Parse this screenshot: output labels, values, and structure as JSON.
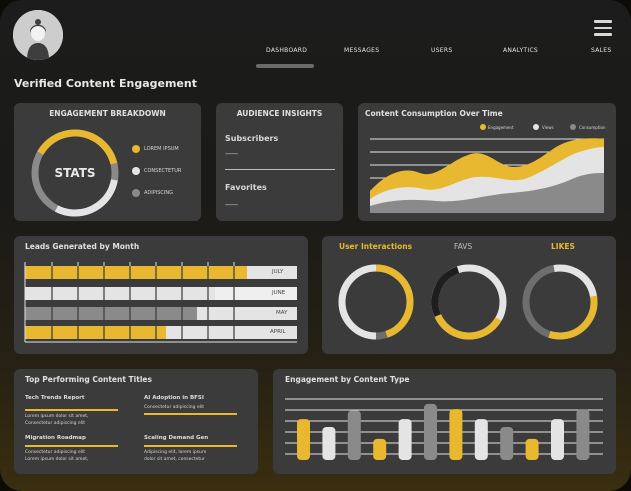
{
  "header": {
    "nav": [
      {
        "label": "DASHBOARD",
        "active": true
      },
      {
        "label": "MESSAGES",
        "active": false
      },
      {
        "label": "USERS",
        "active": false
      },
      {
        "label": "ANALYTICS",
        "active": false
      },
      {
        "label": "SALES",
        "active": false
      }
    ]
  },
  "page_title": "Verified Content Engagement",
  "engagement": {
    "title": "ENGAGEMENT BREAKDOWN",
    "center": "STATS",
    "legend": [
      {
        "label": "LOREM IPSUM",
        "color": "#e8b830"
      },
      {
        "label": "CONSECTETUR",
        "color": "#e4e4e4"
      },
      {
        "label": "ADIPISCING",
        "color": "#8a8a8a"
      }
    ]
  },
  "audience": {
    "title": "AUDIENCE INSIGHTS",
    "subscribers_label": "Subscribers",
    "subscribers_value": "--------",
    "favorites_label": "Favorites",
    "favorites_value": "--------"
  },
  "consumption": {
    "title": "Content Consumption Over Time",
    "legend": [
      {
        "label": "Engagement",
        "color": "#e8b830"
      },
      {
        "label": "Views",
        "color": "#e4e4e4"
      },
      {
        "label": "Consumption",
        "color": "#8a8a8a"
      }
    ]
  },
  "leads": {
    "title": "Leads Generated by Month",
    "bars": [
      {
        "month": "JULY",
        "value": 0.82,
        "color": "#e8b830"
      },
      {
        "month": "JUNE",
        "value": 0.7,
        "color": "#e4e4e4"
      },
      {
        "month": "MAY",
        "value": 0.63,
        "color": "#8a8a8a"
      },
      {
        "month": "APRIL",
        "value": 0.52,
        "color": "#e8b830"
      }
    ]
  },
  "interactions": {
    "labels": [
      "User Interactions",
      "FAVS",
      "LIKES"
    ],
    "donuts": [
      {
        "share": 0.45,
        "color": "#e8b830"
      },
      {
        "share": 0.35,
        "color": "#e8b830"
      },
      {
        "share": 0.3,
        "color": "#e8b830"
      }
    ]
  },
  "top_titles": {
    "title": "Top Performing Content Titles",
    "items": [
      {
        "name": "Tech Trends Report",
        "sub1": "Lorem ipsum dolor sit amet,",
        "sub2": "Consectetur adipiscing elit"
      },
      {
        "name": "AI Adoption in BFSI",
        "sub1": "Consectetur adipiscing elit",
        "sub2": ""
      },
      {
        "name": "Migration Roadmap",
        "sub1": "Consectetur adipiscing elit",
        "sub2": "Lorem ipsum dolor sit amet,"
      },
      {
        "name": "Scaling Demand Gen",
        "sub1": "Adipiscing elit, lorem ipsum",
        "sub2": "dolor sit amet, consectetur"
      }
    ]
  },
  "engagement_type": {
    "title": "Engagement by Content Type",
    "bars": [
      {
        "value": 0.62,
        "color": "#e8b830"
      },
      {
        "value": 0.5,
        "color": "#e4e4e4"
      },
      {
        "value": 0.75,
        "color": "#8a8a8a"
      },
      {
        "value": 0.32,
        "color": "#e8b830"
      },
      {
        "value": 0.62,
        "color": "#e4e4e4"
      },
      {
        "value": 0.85,
        "color": "#8a8a8a"
      },
      {
        "value": 0.77,
        "color": "#e8b830"
      },
      {
        "value": 0.62,
        "color": "#e4e4e4"
      },
      {
        "value": 0.5,
        "color": "#8a8a8a"
      },
      {
        "value": 0.32,
        "color": "#e8b830"
      },
      {
        "value": 0.62,
        "color": "#e4e4e4"
      },
      {
        "value": 0.77,
        "color": "#8a8a8a"
      }
    ]
  }
}
